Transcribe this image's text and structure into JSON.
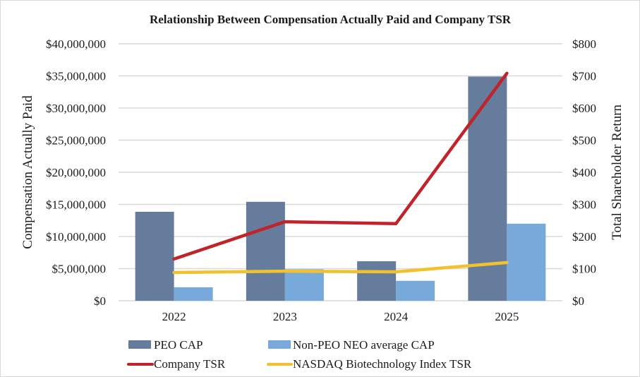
{
  "chart_data": {
    "type": "bar",
    "title": "Relationship Between Compensation Actually Paid and Company TSR",
    "categories": [
      "2022",
      "2023",
      "2024",
      "2025"
    ],
    "ylabel": "Compensation Actually Paid",
    "y2label": "Total Shareholder Return",
    "ylim": [
      0,
      40000000
    ],
    "y2lim": [
      0,
      800
    ],
    "yticks": [
      "$0",
      "$5,000,000",
      "$10,000,000",
      "$15,000,000",
      "$20,000,000",
      "$25,000,000",
      "$30,000,000",
      "$35,000,000",
      "$40,000,000"
    ],
    "y2ticks": [
      "$0",
      "$100",
      "$200",
      "$300",
      "$400",
      "$500",
      "$600",
      "$700",
      "$800"
    ],
    "grid": true,
    "legend_position": "bottom",
    "series": [
      {
        "name": "PEO CAP",
        "type": "bar",
        "axis": "left",
        "color": "#667c9c",
        "values": [
          13850000,
          15400000,
          6150000,
          34900000
        ]
      },
      {
        "name": "Non-PEO NEO average CAP",
        "type": "bar",
        "axis": "left",
        "color": "#77a9db",
        "values": [
          2100000,
          4900000,
          3100000,
          12000000
        ]
      },
      {
        "name": "Company TSR",
        "type": "line",
        "axis": "right",
        "color": "#c0232a",
        "values": [
          130,
          246,
          240,
          708
        ]
      },
      {
        "name": "NASDAQ Biotechnology Index TSR",
        "type": "line",
        "axis": "right",
        "color": "#f2c12e",
        "values": [
          88,
          92,
          90,
          119
        ]
      }
    ]
  }
}
